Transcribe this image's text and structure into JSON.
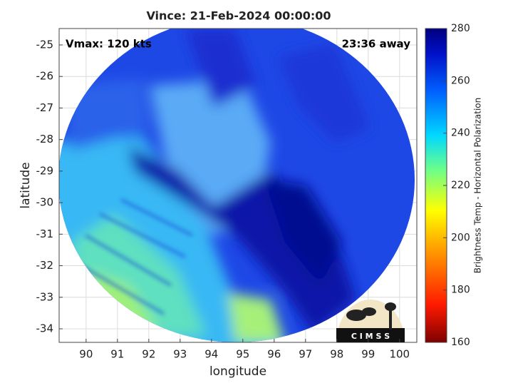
{
  "map": {
    "title": "Vince: 21-Feb-2024 00:00:00",
    "annotations": {
      "vmax": "Vmax: 120 kts",
      "away": "23:36 away"
    },
    "xlabel": "longitude",
    "ylabel": "latitude",
    "xlim": [
      89.14,
      100.55
    ],
    "ylim": [
      -34.43,
      -24.48
    ],
    "xticks": [
      90,
      91,
      92,
      93,
      94,
      95,
      96,
      97,
      98,
      99,
      100
    ],
    "yticks": [
      -25,
      -26,
      -27,
      -28,
      -29,
      -30,
      -31,
      -32,
      -33,
      -34
    ],
    "grid": true,
    "colorbar": {
      "label": "Brightness Temp - Horizontal Polarization",
      "lim": [
        160,
        280
      ],
      "ticks": [
        160,
        180,
        200,
        220,
        240,
        260,
        280
      ]
    },
    "logo": "C I M S S"
  }
}
